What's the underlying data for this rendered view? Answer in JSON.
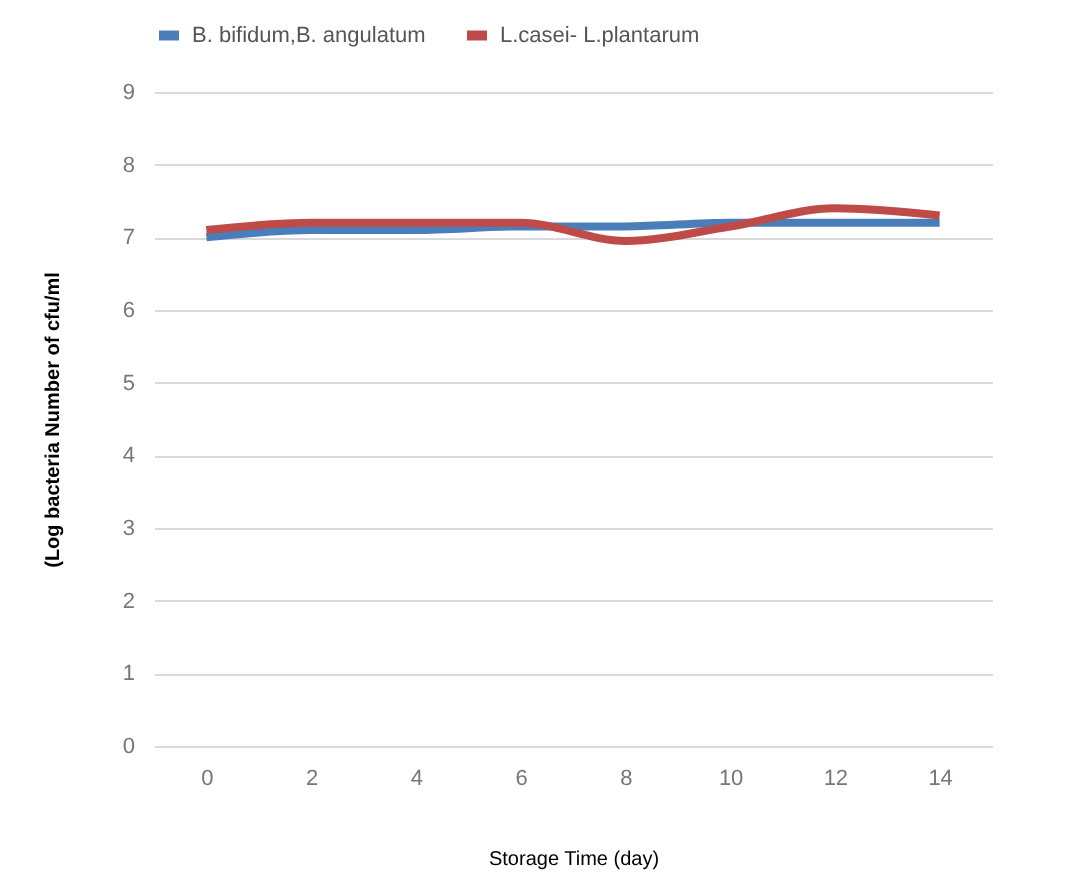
{
  "chart_data": {
    "type": "line",
    "xlabel": "Storage Time (day)",
    "ylabel": "(Log   bacteria Number of cfu/ml",
    "categories": [
      "0",
      "2",
      "4",
      "6",
      "8",
      "10",
      "12",
      "14"
    ],
    "series": [
      {
        "name": "B. bifidum,B. angulatum",
        "color": "#4a7ebb",
        "values": [
          7.0,
          7.1,
          7.1,
          7.15,
          7.15,
          7.2,
          7.2,
          7.2
        ]
      },
      {
        "name": "L.casei-  L.plantarum",
        "color": "#be4b48",
        "values": [
          7.1,
          7.2,
          7.2,
          7.2,
          6.95,
          7.15,
          7.4,
          7.3
        ]
      }
    ],
    "ylim": [
      0,
      9
    ],
    "yticks": [
      0,
      1,
      2,
      3,
      4,
      5,
      6,
      7,
      8,
      9
    ],
    "grid": "y",
    "legend": "top"
  }
}
